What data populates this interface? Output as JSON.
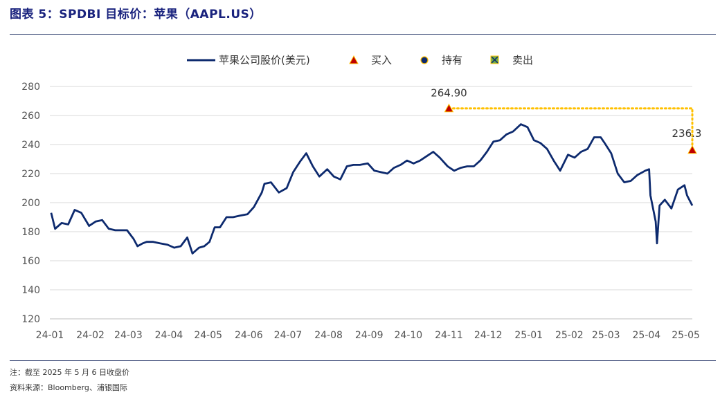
{
  "header": {
    "title": "图表 5：SPDBI 目标价：苹果（AAPL.US）"
  },
  "footer": {
    "note": "注：截至 2025 年 5 月 6 日收盘价",
    "source": "资料来源：Bloomberg、浦银国际"
  },
  "colors": {
    "line": "#0d2a6e",
    "buy_fill": "#c00000",
    "buy_border": "#ffc000",
    "dotted": "#ffc000",
    "hold_fill": "#0d2a6e",
    "sell_fill": "#70ad47"
  },
  "chart_data": {
    "type": "line",
    "title": "",
    "legend": [
      "苹果公司股价(美元)",
      "买入",
      "持有",
      "卖出"
    ],
    "legend_position": "top",
    "grid": true,
    "ylim": [
      120,
      280
    ],
    "yticks": [
      120,
      140,
      160,
      180,
      200,
      220,
      240,
      260,
      280
    ],
    "x_ticks": [
      "24-01",
      "24-02",
      "24-03",
      "24-04",
      "24-05",
      "24-06",
      "24-07",
      "24-08",
      "24-09",
      "24-10",
      "24-11",
      "24-12",
      "25-01",
      "25-02",
      "25-03",
      "25-04",
      "25-05"
    ],
    "series": [
      {
        "name": "苹果公司股价(美元)",
        "x": [
          "2024-01-02",
          "2024-01-05",
          "2024-01-10",
          "2024-01-15",
          "2024-01-20",
          "2024-01-25",
          "2024-01-31",
          "2024-02-05",
          "2024-02-10",
          "2024-02-15",
          "2024-02-20",
          "2024-02-25",
          "2024-02-29",
          "2024-03-05",
          "2024-03-08",
          "2024-03-12",
          "2024-03-15",
          "2024-03-20",
          "2024-03-25",
          "2024-03-31",
          "2024-04-05",
          "2024-04-10",
          "2024-04-15",
          "2024-04-19",
          "2024-04-24",
          "2024-04-28",
          "2024-05-02",
          "2024-05-06",
          "2024-05-10",
          "2024-05-15",
          "2024-05-20",
          "2024-05-25",
          "2024-05-31",
          "2024-06-05",
          "2024-06-11",
          "2024-06-13",
          "2024-06-18",
          "2024-06-24",
          "2024-06-30",
          "2024-07-05",
          "2024-07-10",
          "2024-07-15",
          "2024-07-20",
          "2024-07-25",
          "2024-07-31",
          "2024-08-05",
          "2024-08-10",
          "2024-08-15",
          "2024-08-20",
          "2024-08-25",
          "2024-08-31",
          "2024-09-05",
          "2024-09-10",
          "2024-09-15",
          "2024-09-20",
          "2024-09-25",
          "2024-09-30",
          "2024-10-05",
          "2024-10-10",
          "2024-10-15",
          "2024-10-20",
          "2024-10-25",
          "2024-10-31",
          "2024-11-05",
          "2024-11-10",
          "2024-11-15",
          "2024-11-20",
          "2024-11-25",
          "2024-11-30",
          "2024-12-05",
          "2024-12-10",
          "2024-12-15",
          "2024-12-20",
          "2024-12-26",
          "2024-12-31",
          "2025-01-05",
          "2025-01-10",
          "2025-01-15",
          "2025-01-20",
          "2025-01-25",
          "2025-01-31",
          "2025-02-05",
          "2025-02-10",
          "2025-02-15",
          "2025-02-20",
          "2025-02-25",
          "2025-02-28",
          "2025-03-05",
          "2025-03-10",
          "2025-03-15",
          "2025-03-20",
          "2025-03-25",
          "2025-03-31",
          "2025-04-03",
          "2025-04-04",
          "2025-04-08",
          "2025-04-09",
          "2025-04-11",
          "2025-04-15",
          "2025-04-20",
          "2025-04-25",
          "2025-04-30",
          "2025-05-02",
          "2025-05-06"
        ],
        "y": [
          193,
          182,
          186,
          185,
          195,
          193,
          184,
          187,
          188,
          182,
          181,
          181,
          181,
          175,
          170,
          172,
          173,
          173,
          172,
          171,
          169,
          170,
          176,
          165,
          169,
          170,
          173,
          183,
          183,
          190,
          190,
          191,
          192,
          197,
          207,
          213,
          214,
          207,
          210,
          221,
          228,
          234,
          225,
          218,
          223,
          218,
          216,
          225,
          226,
          226,
          227,
          222,
          221,
          220,
          224,
          226,
          229,
          227,
          229,
          232,
          235,
          231,
          225,
          222,
          224,
          225,
          225,
          229,
          235,
          242,
          243,
          247,
          249,
          254,
          252,
          243,
          241,
          237,
          229,
          222,
          233,
          231,
          235,
          237,
          245,
          245,
          241,
          234,
          220,
          214,
          215,
          219,
          222,
          223,
          205,
          187,
          172,
          198,
          202,
          196,
          209,
          212,
          205,
          198
        ]
      }
    ],
    "markers": [
      {
        "type": "买入",
        "x": "2024-11-01",
        "y": 264.9,
        "label": "264.90"
      },
      {
        "type": "买入",
        "x": "2025-05-06",
        "y": 236.3,
        "label": "236.3"
      }
    ]
  }
}
